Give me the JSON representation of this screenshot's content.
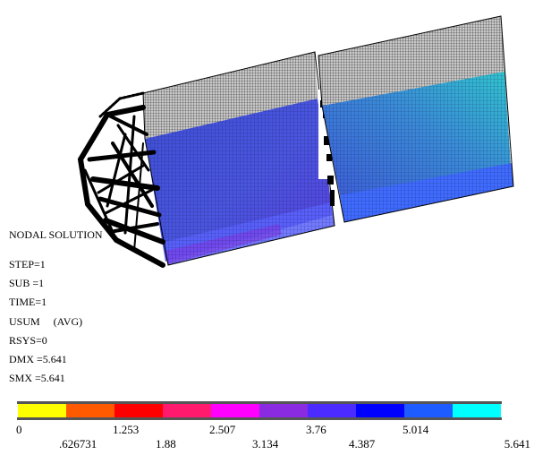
{
  "info": {
    "title": "NODAL SOLUTION",
    "step": "STEP=1",
    "sub": "SUB =1",
    "time": "TIME=1",
    "usum": "USUM     (AVG)",
    "rsys": "RSYS=0",
    "dmx": "DMX =5.641",
    "smx": "SMX =5.641"
  },
  "legend": {
    "colors": [
      "#ffff00",
      "#ff5a00",
      "#ff0000",
      "#ff1a6e",
      "#ff00ff",
      "#8a2be2",
      "#4b2bff",
      "#0000ff",
      "#1e5cff",
      "#00ffff"
    ],
    "top_labels": [
      "0",
      "1.253",
      "2.507",
      "3.76",
      "5.014"
    ],
    "bottom_labels": [
      ".626731",
      "1.88",
      "3.134",
      "4.387",
      "5.641"
    ]
  },
  "model": {
    "mesh_outline_color": "#000000",
    "top_band_color": "#bfbfbf",
    "body_color": "#3c5ad8",
    "light_blue": "#4a7cff",
    "cyan_region": "#2fb8c8"
  }
}
